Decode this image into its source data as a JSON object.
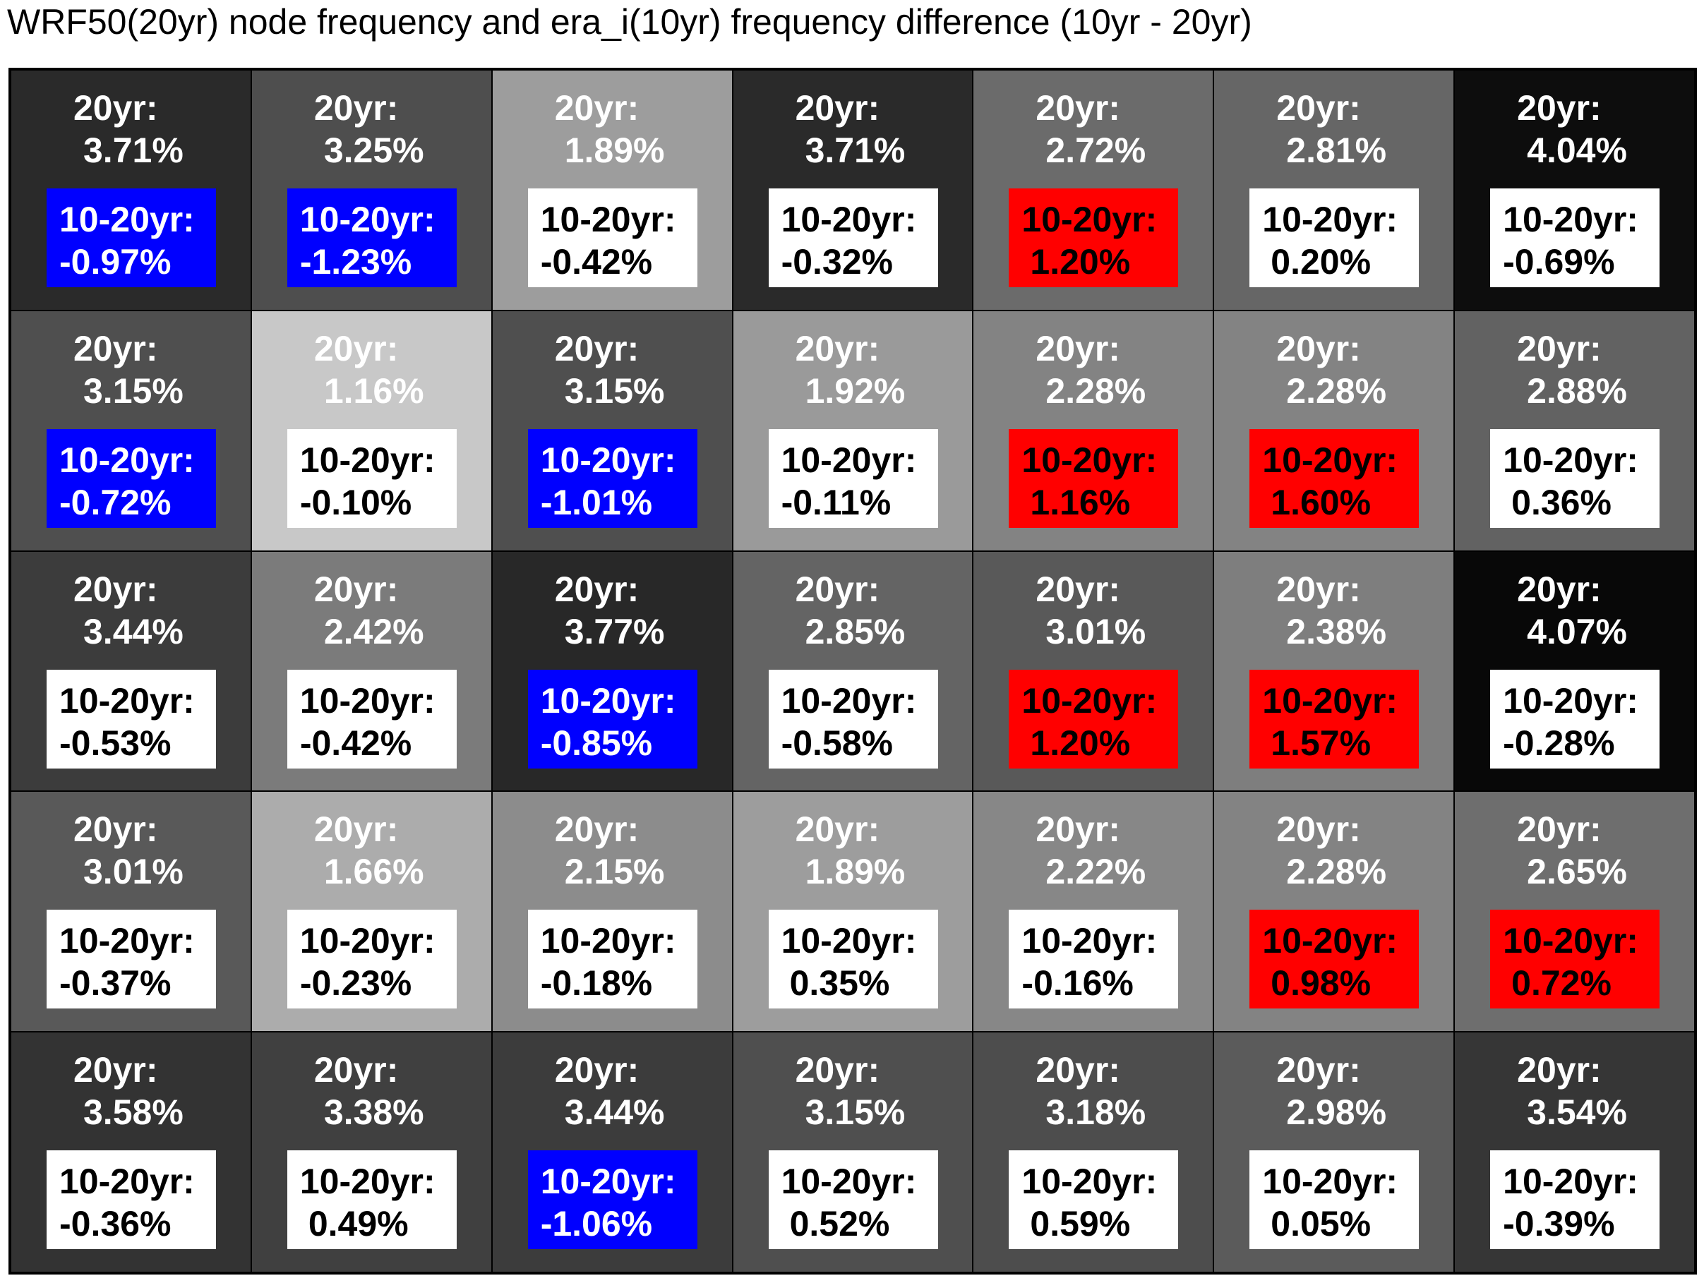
{
  "title": "WRF50(20yr) node frequency and era_i(10yr) frequency difference (10yr - 20yr)",
  "label_20yr": "20yr:",
  "label_diff": "10-20yr:",
  "colors": {
    "positive_highlight": "#ff0000",
    "negative_highlight": "#0000ff",
    "neutral_box": "#ffffff",
    "grid_line": "#000000"
  },
  "chart_data": {
    "type": "heatmap",
    "title": "WRF50(20yr) node frequency and era_i(10yr) frequency difference (10yr - 20yr)",
    "rows": 5,
    "cols": 7,
    "shading": "grayscale by 20yr frequency (darker = higher)",
    "highlight_rule": "box red when difference significantly positive, blue when significantly negative, white otherwise",
    "cells": [
      [
        {
          "freq20": "3.71%",
          "diff": "-0.97%",
          "box": "blue",
          "shade": "#2a2a2a"
        },
        {
          "freq20": "3.25%",
          "diff": "-1.23%",
          "box": "blue",
          "shade": "#4e4e4e"
        },
        {
          "freq20": "1.89%",
          "diff": "-0.42%",
          "box": "white",
          "shade": "#9d9d9d"
        },
        {
          "freq20": "3.71%",
          "diff": "-0.32%",
          "box": "white",
          "shade": "#2a2a2a"
        },
        {
          "freq20": "2.72%",
          "diff": "1.20%",
          "box": "red",
          "shade": "#6b6b6b"
        },
        {
          "freq20": "2.81%",
          "diff": "0.20%",
          "box": "white",
          "shade": "#666666"
        },
        {
          "freq20": "4.04%",
          "diff": "-0.69%",
          "box": "white",
          "shade": "#0d0d0d"
        }
      ],
      [
        {
          "freq20": "3.15%",
          "diff": "-0.72%",
          "box": "blue",
          "shade": "#4f4f4f"
        },
        {
          "freq20": "1.16%",
          "diff": "-0.10%",
          "box": "white",
          "shade": "#c8c8c8"
        },
        {
          "freq20": "3.15%",
          "diff": "-1.01%",
          "box": "blue",
          "shade": "#4f4f4f"
        },
        {
          "freq20": "1.92%",
          "diff": "-0.11%",
          "box": "white",
          "shade": "#9a9a9a"
        },
        {
          "freq20": "2.28%",
          "diff": "1.16%",
          "box": "red",
          "shade": "#838383"
        },
        {
          "freq20": "2.28%",
          "diff": "1.60%",
          "box": "red",
          "shade": "#838383"
        },
        {
          "freq20": "2.88%",
          "diff": "0.36%",
          "box": "white",
          "shade": "#626262"
        }
      ],
      [
        {
          "freq20": "3.44%",
          "diff": "-0.53%",
          "box": "white",
          "shade": "#3c3c3c"
        },
        {
          "freq20": "2.42%",
          "diff": "-0.42%",
          "box": "white",
          "shade": "#7b7b7b"
        },
        {
          "freq20": "3.77%",
          "diff": "-0.85%",
          "box": "blue",
          "shade": "#282828"
        },
        {
          "freq20": "2.85%",
          "diff": "-0.58%",
          "box": "white",
          "shade": "#646464"
        },
        {
          "freq20": "3.01%",
          "diff": "1.20%",
          "box": "red",
          "shade": "#595959"
        },
        {
          "freq20": "2.38%",
          "diff": "1.57%",
          "box": "red",
          "shade": "#7e7e7e"
        },
        {
          "freq20": "4.07%",
          "diff": "-0.28%",
          "box": "white",
          "shade": "#080808"
        }
      ],
      [
        {
          "freq20": "3.01%",
          "diff": "-0.37%",
          "box": "white",
          "shade": "#595959"
        },
        {
          "freq20": "1.66%",
          "diff": "-0.23%",
          "box": "white",
          "shade": "#acacac"
        },
        {
          "freq20": "2.15%",
          "diff": "-0.18%",
          "box": "white",
          "shade": "#8c8c8c"
        },
        {
          "freq20": "1.89%",
          "diff": "0.35%",
          "box": "white",
          "shade": "#9d9d9d"
        },
        {
          "freq20": "2.22%",
          "diff": "-0.16%",
          "box": "white",
          "shade": "#878787"
        },
        {
          "freq20": "2.28%",
          "diff": "0.98%",
          "box": "red",
          "shade": "#838383"
        },
        {
          "freq20": "2.65%",
          "diff": "0.72%",
          "box": "red",
          "shade": "#6e6e6e"
        }
      ],
      [
        {
          "freq20": "3.58%",
          "diff": "-0.36%",
          "box": "white",
          "shade": "#333333"
        },
        {
          "freq20": "3.38%",
          "diff": "0.49%",
          "box": "white",
          "shade": "#404040"
        },
        {
          "freq20": "3.44%",
          "diff": "-1.06%",
          "box": "blue",
          "shade": "#3c3c3c"
        },
        {
          "freq20": "3.15%",
          "diff": "0.52%",
          "box": "white",
          "shade": "#4f4f4f"
        },
        {
          "freq20": "3.18%",
          "diff": "0.59%",
          "box": "white",
          "shade": "#4d4d4d"
        },
        {
          "freq20": "2.98%",
          "diff": "0.05%",
          "box": "white",
          "shade": "#5b5b5b"
        },
        {
          "freq20": "3.54%",
          "diff": "-0.39%",
          "box": "white",
          "shade": "#363636"
        }
      ]
    ]
  }
}
